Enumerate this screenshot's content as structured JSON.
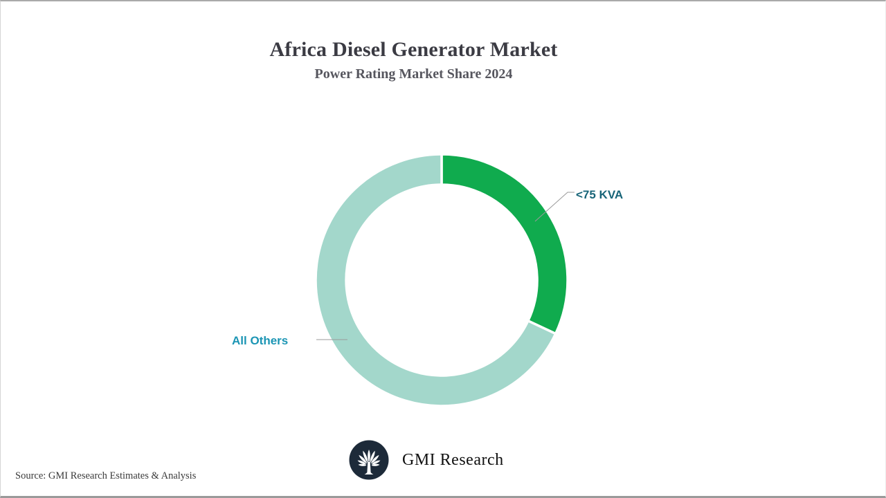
{
  "chart_data": {
    "type": "pie",
    "donut": true,
    "title": "Africa Diesel Generator Market",
    "subtitle": "Power Rating Market Share 2024",
    "legend_position": "callout-labels",
    "start_angle_deg": 0,
    "direction": "clockwise",
    "values_unit": "percent (estimated from arc angles, not printed on chart)",
    "segments": [
      {
        "label": "<75 KVA",
        "value": 32,
        "color": "#10ab4e",
        "label_color": "#176478"
      },
      {
        "label": "All Others",
        "value": 68,
        "color": "#a3d7cb",
        "label_color": "#1b95b4"
      }
    ],
    "callout_line_color": "#9a9a9a",
    "slice_gap_color": "#ffffff"
  },
  "page": {
    "source_note": "Source: GMI Research Estimates & Analysis"
  },
  "brand": {
    "name": "GMI Research",
    "logo_icon": "palm-tree-in-dark-circle",
    "logo_bg_color": "#1d2a39"
  },
  "colors": {
    "title_text": "#3b3b43",
    "subtitle_text": "#56565e",
    "frame_border": "#a9a9a9"
  }
}
